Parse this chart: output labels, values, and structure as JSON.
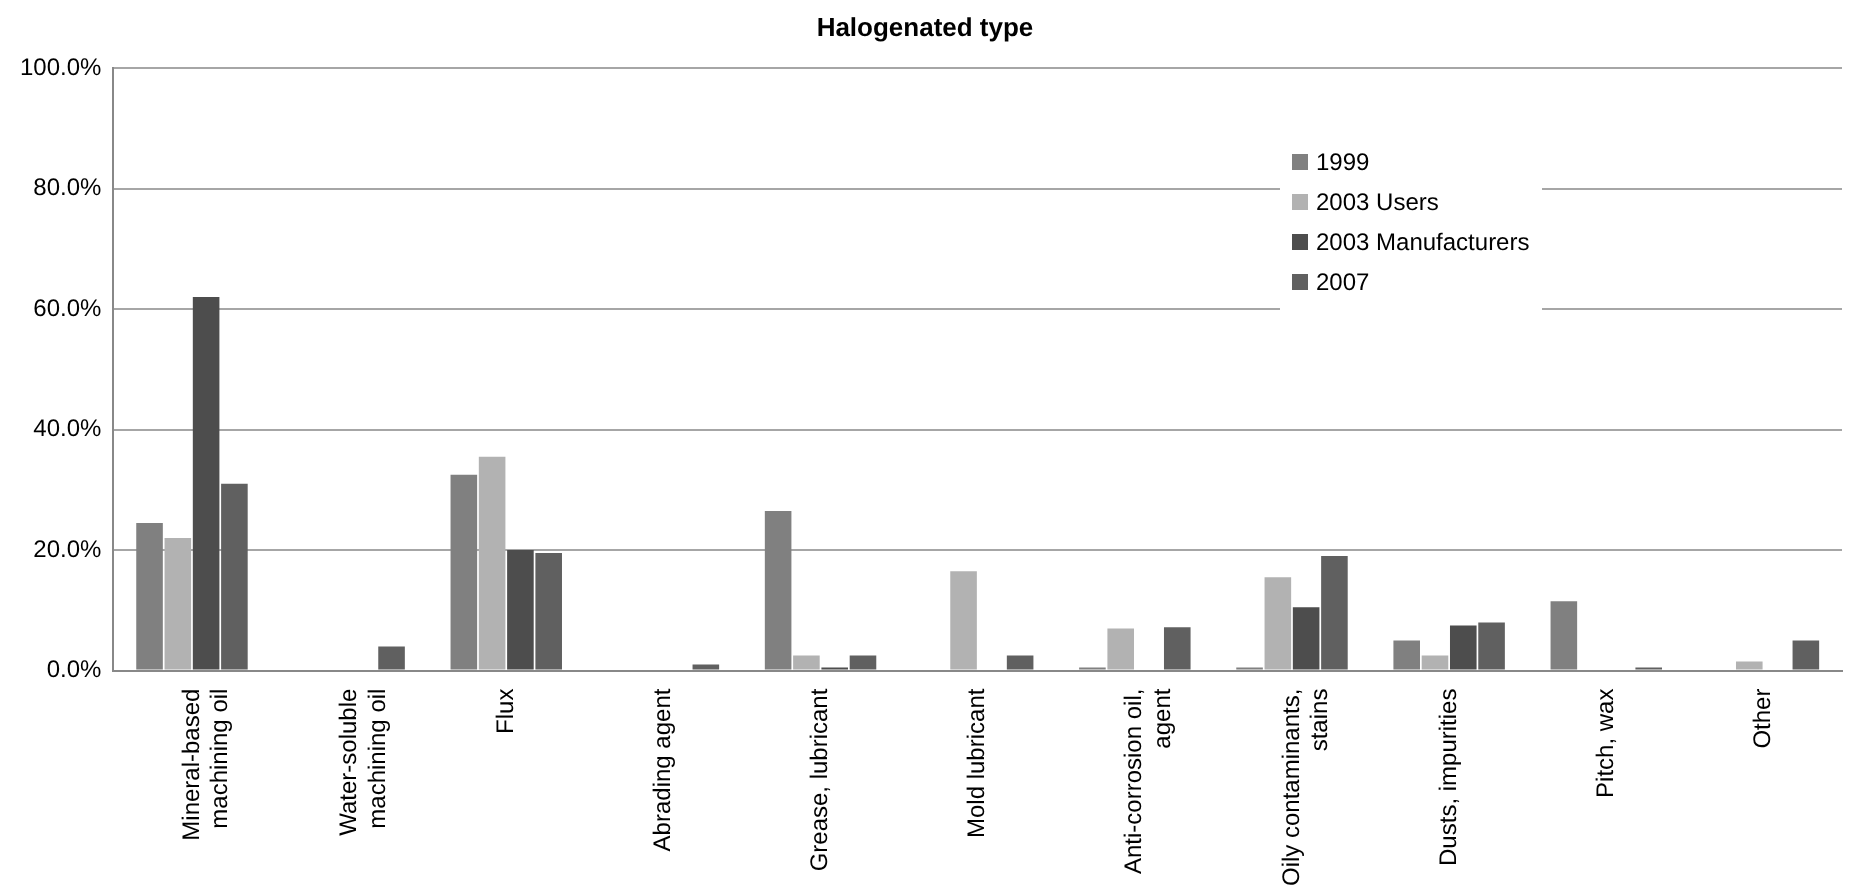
{
  "chart_data": {
    "type": "bar",
    "title": "Halogenated type",
    "categories": [
      "Mineral-based machining oil",
      "Water-soluble machining oil",
      "Flux",
      "Abrading agent",
      "Grease, lubricant",
      "Mold lubricant",
      "Anti-corrosion oil, agent",
      "Oily contaminants, stains",
      "Dusts, impurities",
      "Pitch, wax",
      "Other"
    ],
    "series": [
      {
        "name": "1999",
        "color": "#808080",
        "values": [
          24.5,
          0,
          32.5,
          0,
          26.5,
          0,
          0.5,
          0.5,
          5,
          11.5,
          0
        ]
      },
      {
        "name": "2003 Users",
        "color": "#b2b2b2",
        "values": [
          22,
          0,
          35.5,
          0,
          2.5,
          16.5,
          7,
          15.5,
          2.5,
          0,
          1.5
        ]
      },
      {
        "name": "2003 Manufacturers",
        "color": "#4d4d4d",
        "values": [
          62,
          0,
          20,
          0,
          0.5,
          0,
          0,
          10.5,
          7.5,
          0,
          0
        ]
      },
      {
        "name": "2007",
        "color": "#606060",
        "values": [
          31,
          4,
          19.5,
          1,
          2.5,
          2.5,
          7.2,
          19,
          8,
          0.5,
          5
        ]
      }
    ],
    "ylim": [
      0,
      100
    ],
    "yticks": [
      {
        "value": 0,
        "label": "0.0%"
      },
      {
        "value": 20,
        "label": "20.0%"
      },
      {
        "value": 40,
        "label": "40.0%"
      },
      {
        "value": 60,
        "label": "60.0%"
      },
      {
        "value": 80,
        "label": "80.0%"
      },
      {
        "value": 100,
        "label": "100.0%"
      }
    ],
    "grid": "y",
    "legend": "top right"
  }
}
